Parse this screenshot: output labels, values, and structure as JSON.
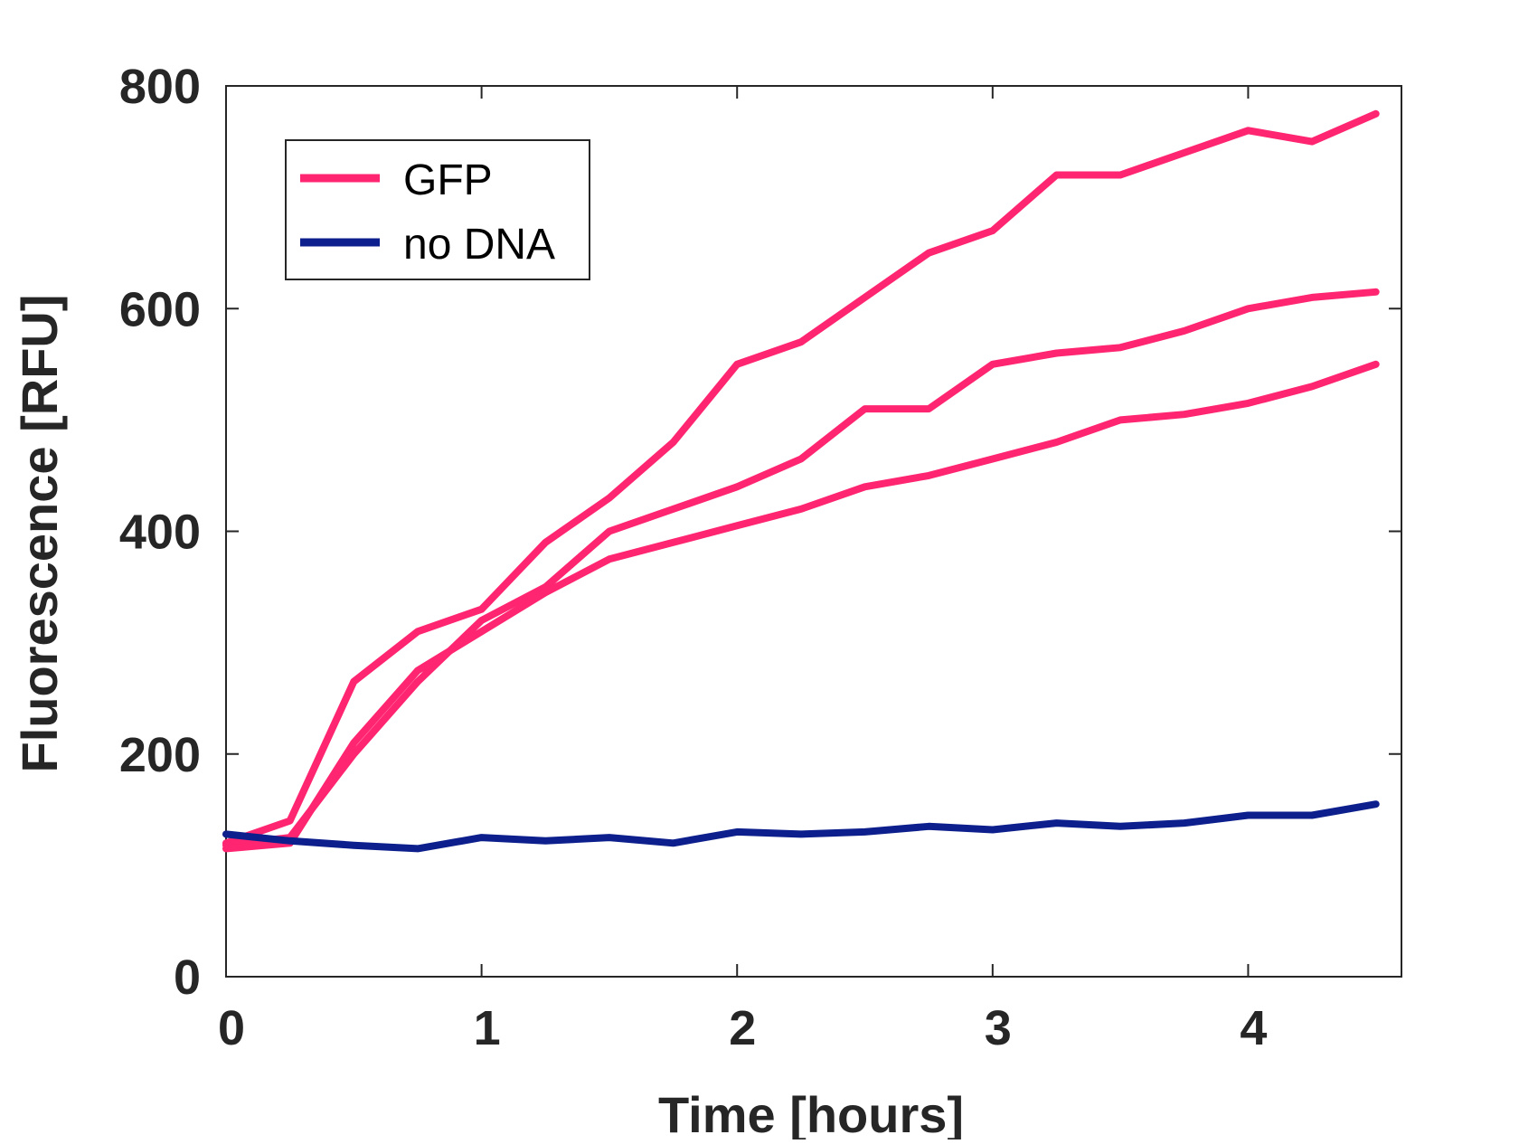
{
  "chart_data": {
    "type": "line",
    "title": "",
    "xlabel": "Time [hours]",
    "ylabel": "Fluorescence [RFU]",
    "xlim": [
      0,
      4.6
    ],
    "ylim": [
      0,
      800
    ],
    "xticks": [
      0,
      1,
      2,
      3,
      4
    ],
    "yticks": [
      0,
      200,
      400,
      600,
      800
    ],
    "xtick_labels": [
      "0",
      "1",
      "2",
      "3",
      "4"
    ],
    "ytick_labels": [
      "0",
      "200",
      "400",
      "600",
      "800"
    ],
    "grid": false,
    "legend": {
      "position": "top-left",
      "entries": [
        "GFP",
        "no DNA"
      ]
    },
    "colors": {
      "GFP": "#ff2570",
      "no DNA": "#0d1f8c"
    },
    "series": [
      {
        "name": "GFP",
        "color": "#ff2570",
        "x": [
          0,
          0.25,
          0.5,
          0.75,
          1,
          1.25,
          1.5,
          1.75,
          2,
          2.25,
          2.5,
          2.75,
          3,
          3.25,
          3.5,
          3.75,
          4,
          4.25,
          4.5
        ],
        "values": [
          120,
          140,
          265,
          310,
          330,
          390,
          430,
          480,
          550,
          570,
          610,
          650,
          670,
          720,
          720,
          740,
          760,
          750,
          775
        ]
      },
      {
        "name": "",
        "color": "#ff2570",
        "x": [
          0,
          0.25,
          0.5,
          0.75,
          1,
          1.25,
          1.5,
          1.75,
          2,
          2.25,
          2.5,
          2.75,
          3,
          3.25,
          3.5,
          3.75,
          4,
          4.25,
          4.5
        ],
        "values": [
          118,
          125,
          200,
          265,
          320,
          350,
          400,
          420,
          440,
          465,
          510,
          510,
          550,
          560,
          565,
          580,
          600,
          610,
          615
        ]
      },
      {
        "name": "",
        "color": "#ff2570",
        "x": [
          0,
          0.25,
          0.5,
          0.75,
          1,
          1.25,
          1.5,
          1.75,
          2,
          2.25,
          2.5,
          2.75,
          3,
          3.25,
          3.5,
          3.75,
          4,
          4.25,
          4.5
        ],
        "values": [
          115,
          120,
          210,
          275,
          310,
          345,
          375,
          390,
          405,
          420,
          440,
          450,
          465,
          480,
          500,
          505,
          515,
          530,
          550
        ]
      },
      {
        "name": "no DNA",
        "color": "#0d1f8c",
        "x": [
          0,
          0.25,
          0.5,
          0.75,
          1,
          1.25,
          1.5,
          1.75,
          2,
          2.25,
          2.5,
          2.75,
          3,
          3.25,
          3.5,
          3.75,
          4,
          4.25,
          4.5
        ],
        "values": [
          128,
          122,
          118,
          115,
          125,
          122,
          125,
          120,
          130,
          128,
          130,
          135,
          132,
          138,
          135,
          138,
          145,
          145,
          155
        ]
      }
    ]
  }
}
